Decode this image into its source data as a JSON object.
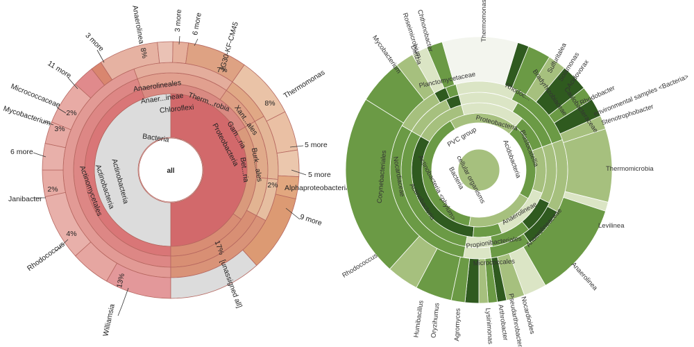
{
  "left_chart": {
    "center_label": "all",
    "rings": [
      {
        "level": 1,
        "segments": [
          {
            "label": "Bacteria",
            "start": 0,
            "end": 180,
            "color": "#d2696b"
          },
          {
            "label": "",
            "start": 180,
            "end": 360,
            "color": "#dcdcdc"
          }
        ]
      },
      {
        "level": 2,
        "segments": [
          {
            "label": "Actinobacteria",
            "start": 180,
            "end": 340,
            "color": "#d97677"
          },
          {
            "label": "Chloroflexi",
            "start": 340,
            "end": 60,
            "color": "#d98a82"
          },
          {
            "label": "Proteobacteria",
            "start": 60,
            "end": 125,
            "color": "#d99a7c"
          },
          {
            "label": "",
            "start": 125,
            "end": 180,
            "color": "#d88d74"
          }
        ]
      },
      {
        "level": 3,
        "segments": [
          {
            "label": "Actinobacteria",
            "start": 180,
            "end": 340,
            "color": "#dd8785"
          },
          {
            "label": "Anaer...ineae",
            "start": 340,
            "end": 35,
            "color": "#e1a08f"
          },
          {
            "label": "Therm...robia",
            "start": 35,
            "end": 60,
            "color": "#dea084"
          },
          {
            "label": "Gam...ria",
            "start": 60,
            "end": 95,
            "color": "#e0aa8a"
          },
          {
            "label": "Bet...ria",
            "start": 95,
            "end": 118,
            "color": "#e2b492"
          },
          {
            "label": "",
            "start": 118,
            "end": 180,
            "color": "#d88f74"
          }
        ]
      },
      {
        "level": 4,
        "segments": [
          {
            "label": "Actinomycetales",
            "start": 180,
            "end": 340,
            "color": "#e29a95"
          },
          {
            "label": "Anaerolineales",
            "start": 340,
            "end": 35,
            "color": "#e4ad9c"
          },
          {
            "label": "",
            "start": 35,
            "end": 60,
            "color": "#e0a885"
          },
          {
            "label": "Xant...ales",
            "start": 60,
            "end": 95,
            "color": "#e4b697"
          },
          {
            "label": "Burk...ales",
            "start": 95,
            "end": 118,
            "color": "#e6bea0"
          },
          {
            "label": "",
            "start": 118,
            "end": 180,
            "color": "#d99378"
          }
        ]
      },
      {
        "level": 5,
        "segments": [
          {
            "label": "Williamsia",
            "start": 180,
            "end": 210,
            "color": "#e3989a"
          },
          {
            "label": "Rhodococcus",
            "start": 210,
            "end": 228,
            "color": "#e6a6a1"
          },
          {
            "label": "Janibacter",
            "start": 228,
            "end": 258,
            "color": "#e8b0aa"
          },
          {
            "label": "6 more",
            "start": 258,
            "end": 270,
            "color": "#e7aba4"
          },
          {
            "label": "Mycobacterium",
            "start": 270,
            "end": 282,
            "color": "#e8b0aa"
          },
          {
            "label": "Micrococcaceae",
            "start": 282,
            "end": 292,
            "color": "#e7aaa4"
          },
          {
            "label": "11 more",
            "start": 292,
            "end": 312,
            "color": "#e8aba5"
          },
          {
            "label": "",
            "start": 312,
            "end": 322,
            "color": "#e08a8c"
          },
          {
            "label": "3 more",
            "start": 322,
            "end": 327,
            "color": "#d9866f"
          },
          {
            "label": "Anaerolinea",
            "start": 327,
            "end": 354,
            "color": "#e6b2a2"
          },
          {
            "label": "3 more",
            "start": 354,
            "end": 361,
            "color": "#eac2b5"
          },
          {
            "label": "6 more",
            "start": 361,
            "end": 368,
            "color": "#e6b09c"
          },
          {
            "label": "JG30-KF-CM45",
            "start": 368,
            "end": 395,
            "color": "#dea283"
          },
          {
            "label": "Thermomonas",
            "start": 395,
            "end": 423,
            "color": "#eac3a7"
          },
          {
            "label": "5 more",
            "start": 423,
            "end": 441,
            "color": "#eac0a4"
          },
          {
            "label": "5 more",
            "start": 441,
            "end": 453,
            "color": "#ebc7ad"
          },
          {
            "label": "Alphaproteobacteria",
            "start": 453,
            "end": 463,
            "color": "#e2a77f"
          },
          {
            "label": "9 more",
            "start": 463,
            "end": 498,
            "color": "#dc9a73"
          },
          {
            "label": "",
            "start": 498,
            "end": 540,
            "color": "#dcdcdc"
          }
        ]
      }
    ],
    "inner_labels": [
      "Bacteria",
      "Actinobacteria",
      "Actinobacteria",
      "Actinomycetales",
      "Chloroflexi",
      "Anaer...ineae",
      "Anaerolineales",
      "Therm...robia",
      "Proteobacteria",
      "Gam...ria",
      "Xant...ales",
      "Bet...ria",
      "Burk...ales"
    ],
    "percents": {
      "williamsia": "13%",
      "rhodococcus": "4%",
      "janibacter": "2%",
      "mycobacterium": "3%",
      "micrococcaceae": "2%",
      "anaerolinea": "8%",
      "jg30": "7%",
      "thermomonas": "8%",
      "alphaproteo": "2%",
      "unassigned": "17%"
    },
    "unassigned_label": "[unassigned all]",
    "outer_labels": {
      "williamsia": "Williamsia",
      "rhodococcus": "Rhodococcus",
      "janibacter": "Janibacter",
      "six_more_a": "6 more",
      "mycobacterium": "Mycobacterium",
      "micrococcaceae": "Micrococcaceae",
      "eleven_more": "11 more",
      "three_more_a": "3 more",
      "anaerolinea": "Anaerolinea",
      "three_more_b": "3 more",
      "six_more_b": "6 more",
      "jg30": "JG30-KF-CM45",
      "thermomonas": "Thermomonas",
      "five_more_a": "5 more",
      "five_more_b": "5 more",
      "alphaproteo": "Alphaproteobacteria",
      "nine_more": "9 more"
    }
  },
  "right_chart": {
    "colors": {
      "dark": "#2f5a1f",
      "mid": "#6b9a45",
      "light": "#a6c07e",
      "pale": "#dbe5c5",
      "white": "#f3f5ee"
    },
    "labels": {
      "thermomonas": "Thermomonas",
      "chthonobacter": "Chthonobacter",
      "roseimicrobium": "Roseimicrobium",
      "dietzia": "Dietzia",
      "mycobacterium": "Mycobacterium",
      "planctomycetaceae": "Planctomycetaceae",
      "sulfuritalea": "Sulfuritalea",
      "solamonas": "Solamonas",
      "acidovorax": "Acidovorax",
      "rhodoc": "Rhodoc...",
      "bradyrhizobiaceae": "Bradyrhizobiaceae",
      "caulobacteraceae": "Caulobacteraceae",
      "environmental_samples": "environmental samples <Bacteria>",
      "stenotrophobacter": "Stenotrophobacter",
      "rhodobacter": "Rhodobacter",
      "proteobacteria": "Proteobacteria",
      "blastocatellia": "Blastocatellia",
      "acidobacteria": "Acidobacteria",
      "pvc_group": "PVC group",
      "nocardiaceae": "Nocardiaceae",
      "corynebacteriales": "Corynebacteriales",
      "actinobacteria_phylum": "Actinobacteria <phylum>",
      "bacteria": "Bacteria",
      "cellular_organisms": "cellular organisms",
      "actinobacteria": "Actinobacteria",
      "thermomicrobia": "Thermomicrobia",
      "levilinea": "Levilinea",
      "anaerolineae": "Anaerolineae",
      "anaerolineaceae": "Anaerolineaceae",
      "anaerolinea": "Anaerolinea",
      "propionibacteriales": "Propionibacteriales",
      "micrococcales": "Micrococcales",
      "rhodococcus": "Rhodococcus",
      "humibacillus": "Humibacillus",
      "oryzihumus": "Oryzihumus",
      "agromyces": "Agromyces",
      "lysinimonas": "Lysinimonas",
      "arthrobacter": "Arthrobacter",
      "pseudarthrobacter": "Pseudarthrobacter",
      "nocardioides": "Nocardioides"
    }
  }
}
